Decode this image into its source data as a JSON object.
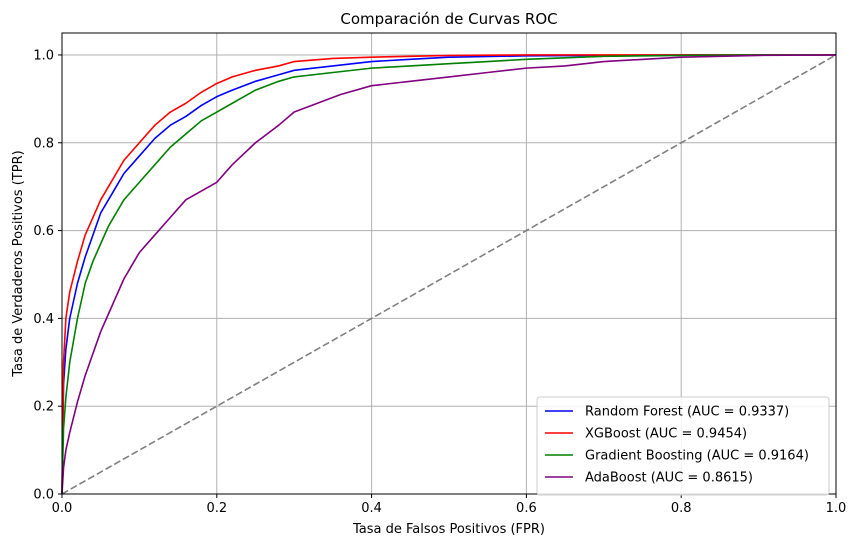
{
  "chart_data": {
    "type": "line",
    "title": "Comparación de Curvas ROC",
    "xlabel": "Tasa de Falsos Positivos (FPR)",
    "ylabel": "Tasa de Verdaderos Positivos (TPR)",
    "xlim": [
      0.0,
      1.0
    ],
    "ylim": [
      0.0,
      1.05
    ],
    "xticks": [
      "0.0",
      "0.2",
      "0.4",
      "0.6",
      "0.8",
      "1.0"
    ],
    "yticks": [
      "0.0",
      "0.2",
      "0.4",
      "0.6",
      "0.8",
      "1.0"
    ],
    "grid": true,
    "legend_position": "lower-right",
    "series": [
      {
        "name": "Random Forest (AUC = 0.9337)",
        "color": "#0000ff",
        "x": [
          0,
          0.002,
          0.005,
          0.01,
          0.02,
          0.03,
          0.04,
          0.05,
          0.06,
          0.07,
          0.08,
          0.1,
          0.12,
          0.14,
          0.16,
          0.18,
          0.2,
          0.22,
          0.25,
          0.28,
          0.3,
          0.35,
          0.4,
          0.45,
          0.5,
          0.6,
          0.7,
          0.8,
          0.9,
          1.0
        ],
        "y": [
          0,
          0.25,
          0.33,
          0.4,
          0.48,
          0.54,
          0.59,
          0.64,
          0.67,
          0.7,
          0.73,
          0.77,
          0.81,
          0.84,
          0.86,
          0.885,
          0.905,
          0.92,
          0.94,
          0.955,
          0.965,
          0.975,
          0.985,
          0.99,
          0.995,
          0.998,
          0.999,
          1.0,
          1.0,
          1.0
        ]
      },
      {
        "name": "XGBoost (AUC = 0.9454)",
        "color": "#ff0000",
        "x": [
          0,
          0.002,
          0.005,
          0.01,
          0.02,
          0.03,
          0.04,
          0.05,
          0.06,
          0.07,
          0.08,
          0.1,
          0.12,
          0.14,
          0.16,
          0.18,
          0.2,
          0.22,
          0.25,
          0.28,
          0.3,
          0.35,
          0.4,
          0.45,
          0.5,
          0.6,
          0.7,
          0.8,
          0.9,
          1.0
        ],
        "y": [
          0,
          0.3,
          0.4,
          0.46,
          0.53,
          0.59,
          0.63,
          0.67,
          0.7,
          0.73,
          0.76,
          0.8,
          0.84,
          0.87,
          0.89,
          0.915,
          0.935,
          0.95,
          0.965,
          0.975,
          0.985,
          0.992,
          0.995,
          0.997,
          0.999,
          1.0,
          1.0,
          1.0,
          1.0,
          1.0
        ]
      },
      {
        "name": "Gradient Boosting (AUC = 0.9164)",
        "color": "#008000",
        "x": [
          0,
          0.002,
          0.005,
          0.01,
          0.02,
          0.03,
          0.04,
          0.05,
          0.06,
          0.07,
          0.08,
          0.1,
          0.12,
          0.14,
          0.16,
          0.18,
          0.2,
          0.22,
          0.25,
          0.28,
          0.3,
          0.35,
          0.4,
          0.45,
          0.5,
          0.55,
          0.6,
          0.7,
          0.8,
          0.9,
          1.0
        ],
        "y": [
          0,
          0.15,
          0.22,
          0.3,
          0.4,
          0.48,
          0.53,
          0.57,
          0.61,
          0.64,
          0.67,
          0.71,
          0.75,
          0.79,
          0.82,
          0.85,
          0.87,
          0.89,
          0.92,
          0.94,
          0.95,
          0.96,
          0.97,
          0.975,
          0.98,
          0.985,
          0.99,
          0.997,
          0.999,
          1.0,
          1.0
        ]
      },
      {
        "name": "AdaBoost (AUC = 0.8615)",
        "color": "#800080",
        "x": [
          0,
          0.002,
          0.005,
          0.01,
          0.02,
          0.03,
          0.04,
          0.05,
          0.06,
          0.07,
          0.08,
          0.09,
          0.1,
          0.12,
          0.14,
          0.16,
          0.18,
          0.2,
          0.22,
          0.25,
          0.28,
          0.3,
          0.33,
          0.36,
          0.4,
          0.45,
          0.5,
          0.55,
          0.6,
          0.65,
          0.7,
          0.8,
          0.9,
          1.0
        ],
        "y": [
          0,
          0.06,
          0.1,
          0.14,
          0.21,
          0.27,
          0.32,
          0.37,
          0.41,
          0.45,
          0.49,
          0.52,
          0.55,
          0.59,
          0.63,
          0.67,
          0.69,
          0.71,
          0.75,
          0.8,
          0.84,
          0.87,
          0.89,
          0.91,
          0.93,
          0.94,
          0.95,
          0.96,
          0.97,
          0.975,
          0.985,
          0.995,
          0.999,
          1.0
        ]
      },
      {
        "name": "",
        "color": "#808080",
        "dashed": true,
        "x": [
          0,
          1
        ],
        "y": [
          0,
          1
        ]
      }
    ]
  }
}
